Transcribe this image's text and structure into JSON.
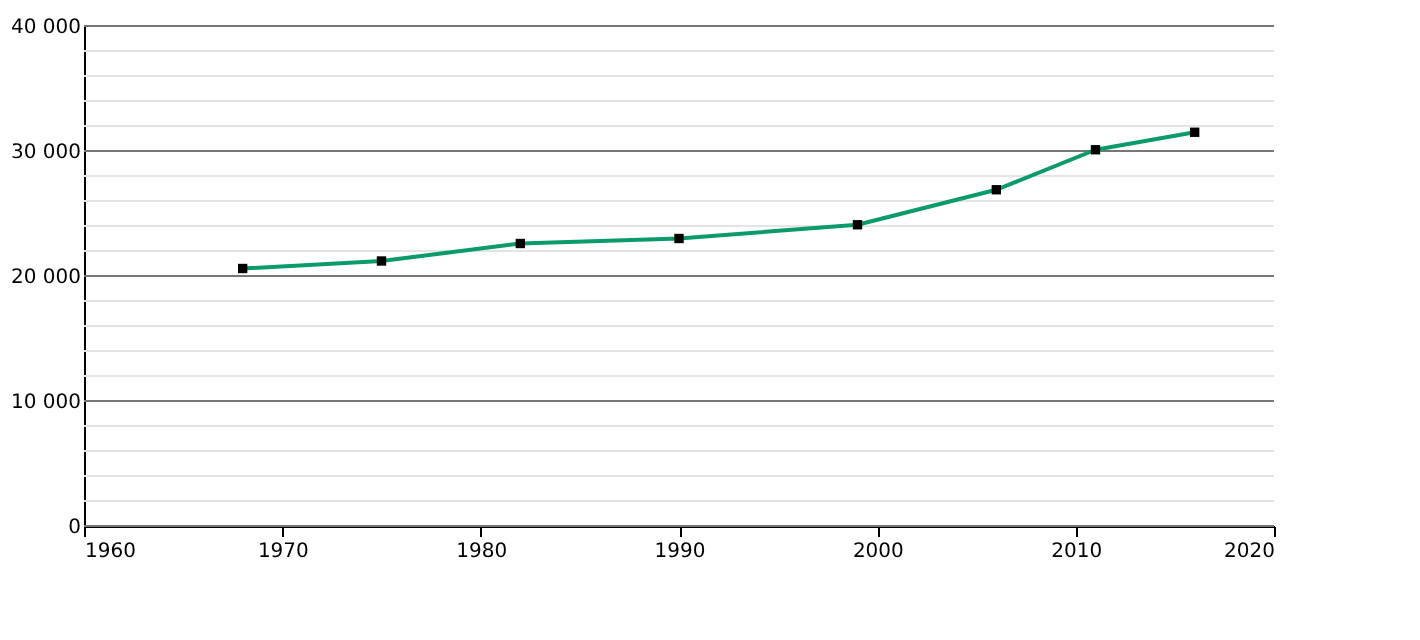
{
  "chart_data": {
    "type": "line",
    "x": [
      1968,
      1975,
      1982,
      1990,
      1999,
      2006,
      2011,
      2016
    ],
    "series": [
      {
        "color": "#0a9a6c",
        "values": [
          20600,
          21200,
          22600,
          23000,
          24100,
          26900,
          30100,
          31500
        ]
      }
    ],
    "xlim": [
      1960,
      2020
    ],
    "xticks": [
      1960,
      1970,
      1980,
      1990,
      2000,
      2010,
      2020
    ],
    "ylim": [
      0,
      40000
    ],
    "yticks": [
      {
        "value": 0,
        "label": "0"
      },
      {
        "value": 2000,
        "label": null
      },
      {
        "value": 4000,
        "label": null
      },
      {
        "value": 6000,
        "label": null
      },
      {
        "value": 8000,
        "label": null
      },
      {
        "value": 10000,
        "label": "10 000"
      },
      {
        "value": 12000,
        "label": null
      },
      {
        "value": 14000,
        "label": null
      },
      {
        "value": 16000,
        "label": null
      },
      {
        "value": 18000,
        "label": null
      },
      {
        "value": 20000,
        "label": "20 000"
      },
      {
        "value": 22000,
        "label": null
      },
      {
        "value": 24000,
        "label": null
      },
      {
        "value": 26000,
        "label": null
      },
      {
        "value": 28000,
        "label": null
      },
      {
        "value": 30000,
        "label": "30 000"
      },
      {
        "value": 32000,
        "label": null
      },
      {
        "value": 34000,
        "label": null
      },
      {
        "value": 36000,
        "label": null
      },
      {
        "value": 38000,
        "label": null
      },
      {
        "value": 40000,
        "label": "40 000"
      }
    ],
    "grid": "y",
    "marker": "square",
    "line_style": "solid"
  }
}
